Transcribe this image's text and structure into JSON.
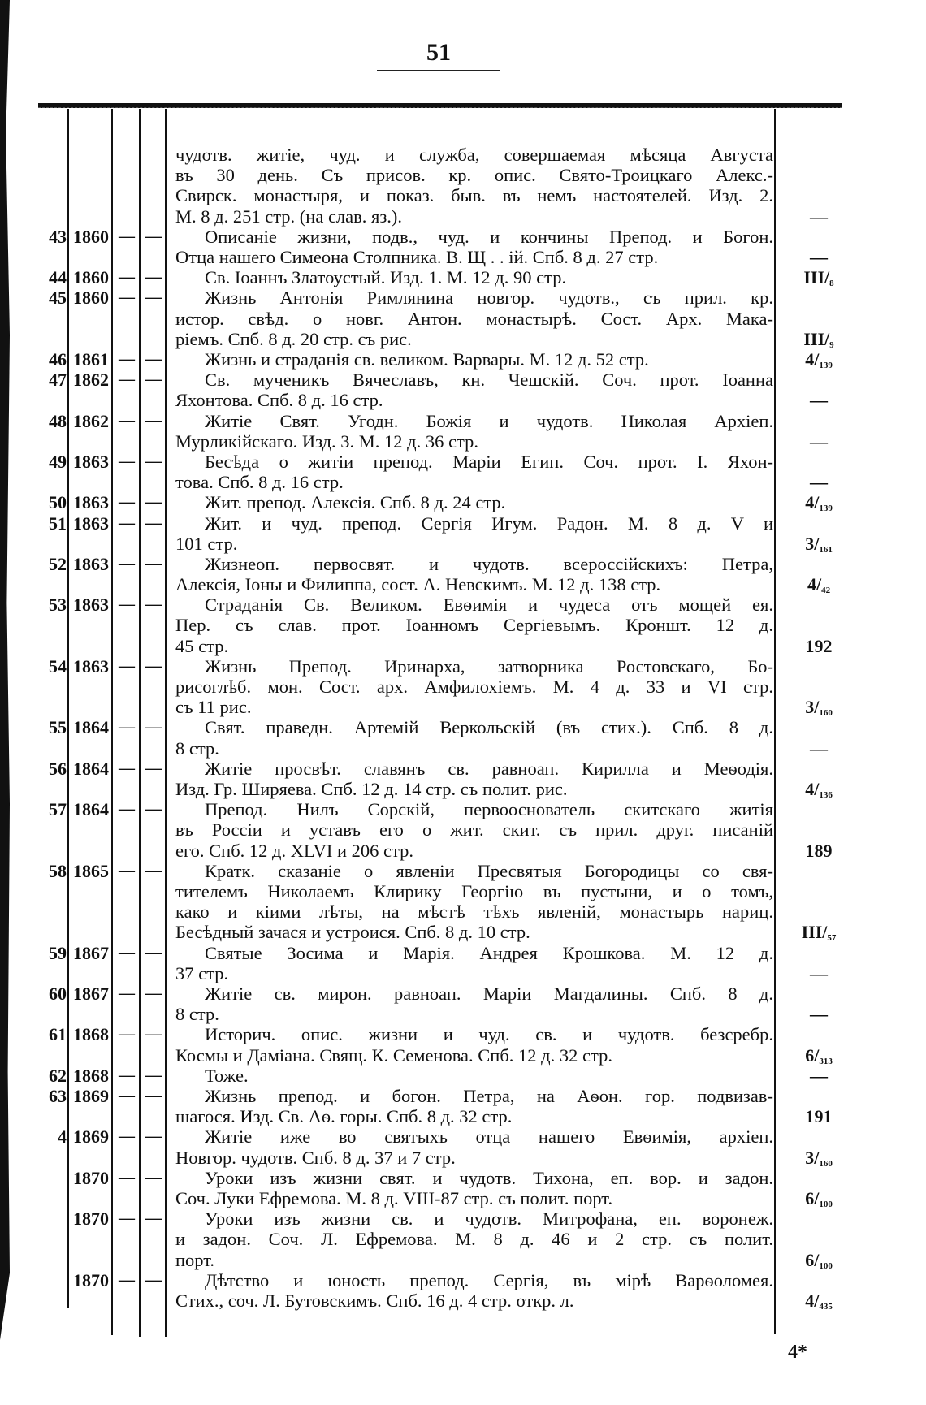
{
  "page_number": "51",
  "signature_mark": "4*",
  "entries": [
    {
      "num": "",
      "year": "",
      "c1": "",
      "c2": "",
      "indent": false,
      "lines": [
        "чудотв. житіе, чуд. и служба, совершаемая мѣсяца Августа",
        "въ 30 день. Съ присов. кр. опис. Свято-Троицкаго Алекс.-",
        "Свирск. монастыря, и показ. быв. въ немъ настоятелей. Изд. 2.",
        "М. 8 д. 251 стр. (на слав. яз.)."
      ],
      "value_main": "—",
      "value_sub": ""
    },
    {
      "num": "43",
      "year": "1860",
      "c1": "—",
      "c2": "—",
      "indent": true,
      "lines": [
        "Описаніе жизни, подв., чуд. и кончины Препод. и Богон.",
        "Отца нашего Симеона Столпника. В. Щ . . ій. Спб. 8 д. 27 стр."
      ],
      "value_main": "—",
      "value_sub": ""
    },
    {
      "num": "44",
      "year": "1860",
      "c1": "—",
      "c2": "—",
      "indent": true,
      "lines": [
        "Св. Іоаннъ Златоустый. Изд. 1. М. 12 д. 90 стр."
      ],
      "value_main": "III/",
      "value_sub": "8"
    },
    {
      "num": "45",
      "year": "1860",
      "c1": "—",
      "c2": "—",
      "indent": true,
      "lines": [
        "Жизнь Антонія Римлянина новгор. чудотв., съ прил. кр.",
        "истор. свѣд. о новг. Антон. монастырѣ. Сост. Арх. Мака-",
        "ріемъ. Спб. 8 д. 20 стр. съ рис."
      ],
      "value_main": "III/",
      "value_sub": "9"
    },
    {
      "num": "46",
      "year": "1861",
      "c1": "—",
      "c2": "—",
      "indent": true,
      "lines": [
        "Жизнь и страданія св. великом. Варвары. М. 12 д. 52 стр."
      ],
      "value_main": "4/",
      "value_sub": "139"
    },
    {
      "num": "47",
      "year": "1862",
      "c1": "—",
      "c2": "—",
      "indent": true,
      "lines": [
        "Св. мученикъ Вячеславъ, кн. Чешскій. Соч. прот. Іоанна",
        "Яхонтова. Спб. 8 д. 16 стр."
      ],
      "value_main": "—",
      "value_sub": ""
    },
    {
      "num": "48",
      "year": "1862",
      "c1": "—",
      "c2": "—",
      "indent": true,
      "lines": [
        "Житіе Свят. Угодн. Божія и чудотв. Николая Архіеп.",
        "Мурликійскаго. Изд. 3. М. 12 д. 36 стр."
      ],
      "value_main": "—",
      "value_sub": ""
    },
    {
      "num": "49",
      "year": "1863",
      "c1": "—",
      "c2": "—",
      "indent": true,
      "lines": [
        "Бесѣда о житіи препод. Маріи Егип. Соч. прот. І. Яхон-",
        "това. Спб. 8 д. 16 стр."
      ],
      "value_main": "—",
      "value_sub": ""
    },
    {
      "num": "50",
      "year": "1863",
      "c1": "—",
      "c2": "—",
      "indent": true,
      "lines": [
        "Жит. препод. Алексія. Спб. 8 д. 24 стр."
      ],
      "value_main": "4/",
      "value_sub": "139"
    },
    {
      "num": "51",
      "year": "1863",
      "c1": "—",
      "c2": "—",
      "indent": true,
      "lines": [
        "Жит. и чуд. препод. Сергія Игум. Радон. М. 8 д. V и",
        "101 стр."
      ],
      "value_main": "3/",
      "value_sub": "161"
    },
    {
      "num": "52",
      "year": "1863",
      "c1": "—",
      "c2": "—",
      "indent": true,
      "lines": [
        "Жизнеоп. первосвят. и чудотв. всероссійскихъ: Петра,",
        "Алексія, Іоны и Филиппа, сост. А. Невскимъ. М. 12 д. 138 стр."
      ],
      "value_main": "4/",
      "value_sub": "42"
    },
    {
      "num": "53",
      "year": "1863",
      "c1": "—",
      "c2": "—",
      "indent": true,
      "lines": [
        "Страданія Св. Великом. Евѳимія и чудеса отъ мощей ея.",
        "Пер. съ слав. прот. Іоанномъ Сергіевымъ. Кроншт. 12 д.",
        "45 стр."
      ],
      "value_main": "192",
      "value_sub": ""
    },
    {
      "num": "54",
      "year": "1863",
      "c1": "—",
      "c2": "—",
      "indent": true,
      "lines": [
        "Жизнь Препод. Иринарха, затворника Ростовскаго, Бо-",
        "рисоглѣб. мон. Сост. арх. Амфилохіемъ. М. 4 д. 33 и VI стр.",
        "съ 11 рис."
      ],
      "value_main": "3/",
      "value_sub": "160"
    },
    {
      "num": "55",
      "year": "1864",
      "c1": "—",
      "c2": "—",
      "indent": true,
      "lines": [
        "Свят. праведн. Артемій Веркольскій (въ стих.). Спб. 8 д.",
        "8 стр."
      ],
      "value_main": "—",
      "value_sub": ""
    },
    {
      "num": "56",
      "year": "1864",
      "c1": "—",
      "c2": "—",
      "indent": true,
      "lines": [
        "Житіе просвѣт. славянъ св. равноап. Кирилла и Меѳодія.",
        "Изд. Гр. Ширяева. Спб. 12 д. 14 стр. съ полит. рис."
      ],
      "value_main": "4/",
      "value_sub": "136"
    },
    {
      "num": "57",
      "year": "1864",
      "c1": "—",
      "c2": "—",
      "indent": true,
      "lines": [
        "Препод. Нилъ Сорскій, первооснователь скитскаго житія",
        "въ Россіи и уставъ его о жит. скит. съ прил. друг. писаній",
        "его. Спб. 12 д. XLVI и 206 стр."
      ],
      "value_main": "189",
      "value_sub": ""
    },
    {
      "num": "58",
      "year": "1865",
      "c1": "—",
      "c2": "—",
      "indent": true,
      "lines": [
        "Кратк. сказаніе о явленіи Пресвятыя Богородицы со свя-",
        "тителемъ Николаемъ Клирику Георгію въ пустыни, и о томъ,",
        "како и кіими лѣты, на мѣстѣ тѣхъ явленій, монастырь нариц.",
        "Бесѣдный зачася и устроися. Спб. 8 д. 10 стр."
      ],
      "value_main": "III/",
      "value_sub": "57"
    },
    {
      "num": "59",
      "year": "1867",
      "c1": "—",
      "c2": "—",
      "indent": true,
      "lines": [
        "Святые Зосима и Марія. Андрея Крошкова. М. 12 д.",
        "37 стр."
      ],
      "value_main": "—",
      "value_sub": ""
    },
    {
      "num": "60",
      "year": "1867",
      "c1": "—",
      "c2": "—",
      "indent": true,
      "lines": [
        "Житіе св. мирон. равноап. Маріи Магдалины. Спб. 8 д.",
        "8 стр."
      ],
      "value_main": "—",
      "value_sub": ""
    },
    {
      "num": "61",
      "year": "1868",
      "c1": "—",
      "c2": "—",
      "indent": true,
      "lines": [
        "Историч. опис. жизни и чуд. св. и чудотв. безсребр.",
        "Космы и Даміана. Свящ. К. Семенова. Спб. 12 д. 32 стр."
      ],
      "value_main": "6/",
      "value_sub": "313"
    },
    {
      "num": "62",
      "year": "1868",
      "c1": "—",
      "c2": "—",
      "indent": true,
      "lines": [
        "Тоже."
      ],
      "value_main": "—",
      "value_sub": ""
    },
    {
      "num": "63",
      "year": "1869",
      "c1": "—",
      "c2": "—",
      "indent": true,
      "lines": [
        "Жизнь препод. и богон. Петра, на Аѳон. гор. подвизав-",
        "шагося. Изд. Св. Аѳ. горы. Спб. 8 д. 32 стр."
      ],
      "value_main": "191",
      "value_sub": ""
    },
    {
      "num": "4",
      "year": "1869",
      "c1": "—",
      "c2": "—",
      "indent": true,
      "lines": [
        "Житіе иже во святыхъ отца нашего Евѳимія, архіеп.",
        "Новгор. чудотв. Спб. 8 д. 37 и 7 стр."
      ],
      "value_main": "3/",
      "value_sub": "160"
    },
    {
      "num": "",
      "year": "1870",
      "c1": "—",
      "c2": "—",
      "indent": true,
      "lines": [
        "Уроки изъ жизни свят. и чудотв. Тихона, еп. вор. и задон.",
        "Соч. Луки Ефремова. М. 8 д. VIII-87 стр. съ полит. порт."
      ],
      "value_main": "6/",
      "value_sub": "100"
    },
    {
      "num": "",
      "year": "1870",
      "c1": "—",
      "c2": "—",
      "indent": true,
      "lines": [
        "Уроки изъ жизни св. и чудотв. Митрофана, еп. воронеж.",
        "и задон. Соч. Л. Ефремова. М. 8 д. 46 и 2 стр. съ полит.",
        "порт."
      ],
      "value_main": "6/",
      "value_sub": "100"
    },
    {
      "num": "",
      "year": "1870",
      "c1": "—",
      "c2": "—",
      "indent": true,
      "lines": [
        "Дѣтство и юность препод. Сергія, въ мірѣ Варѳоломея.",
        "Стих., соч. Л. Бутовскимъ. Спб. 16 д. 4 стр. откр. л."
      ],
      "value_main": "4/",
      "value_sub": "435"
    }
  ]
}
